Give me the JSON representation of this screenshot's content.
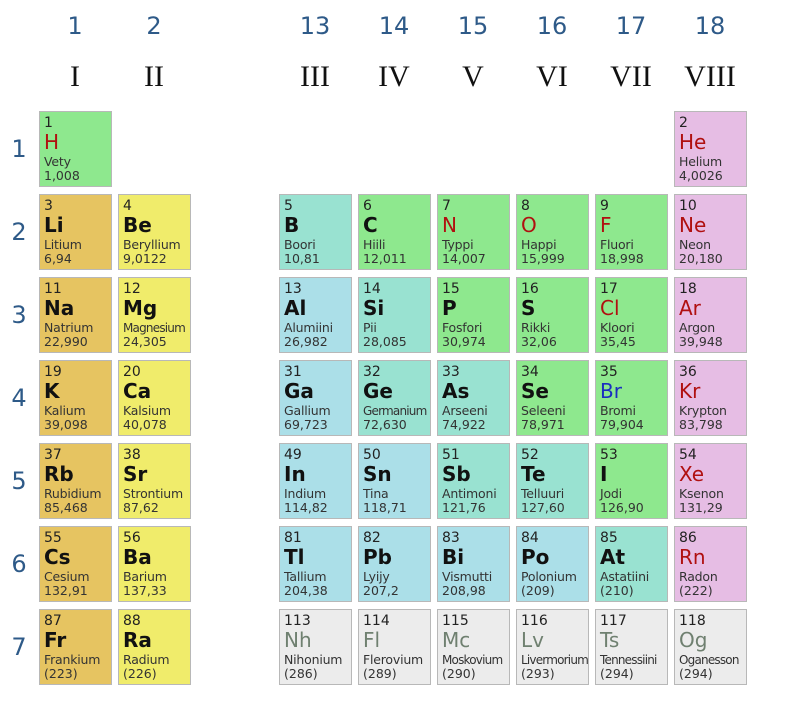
{
  "groups": [
    {
      "num": "1",
      "roman": "I",
      "col": 0
    },
    {
      "num": "2",
      "roman": "II",
      "col": 1
    },
    {
      "num": "13",
      "roman": "III",
      "col": 3
    },
    {
      "num": "14",
      "roman": "IV",
      "col": 4
    },
    {
      "num": "15",
      "roman": "V",
      "col": 5
    },
    {
      "num": "16",
      "roman": "VI",
      "col": 6
    },
    {
      "num": "17",
      "roman": "VII",
      "col": 7
    },
    {
      "num": "18",
      "roman": "VIII",
      "col": 8
    }
  ],
  "periods": [
    "1",
    "2",
    "3",
    "4",
    "5",
    "6",
    "7"
  ],
  "colors": {
    "alkali": "#e6c461",
    "alkaline": "#f0ec6b",
    "nonmetal": "#8ee88e",
    "noble": "#e6bde4",
    "metalloid": "#99e2d1",
    "post": "#abdfe8",
    "unknown": "#ececec",
    "symbol_red": "#b01010",
    "symbol_blue": "#1a2ec0",
    "symbol_gray": "#6f8070",
    "header_blue": "#2e5a88"
  },
  "elements": [
    {
      "z": "1",
      "sym": "H",
      "name": "Vety",
      "mass": "1,008",
      "period": 1,
      "col": 0,
      "cat": "nonmetal",
      "state": "red"
    },
    {
      "z": "2",
      "sym": "He",
      "name": "Helium",
      "mass": "4,0026",
      "period": 1,
      "col": 8,
      "cat": "noble",
      "state": "red"
    },
    {
      "z": "3",
      "sym": "Li",
      "name": "Litium",
      "mass": "6,94",
      "period": 2,
      "col": 0,
      "cat": "alkali",
      "state": "black"
    },
    {
      "z": "4",
      "sym": "Be",
      "name": "Beryllium",
      "mass": "9,0122",
      "period": 2,
      "col": 1,
      "cat": "alkaline",
      "state": "black"
    },
    {
      "z": "5",
      "sym": "B",
      "name": "Boori",
      "mass": "10,81",
      "period": 2,
      "col": 3,
      "cat": "metalloid",
      "state": "black"
    },
    {
      "z": "6",
      "sym": "C",
      "name": "Hiili",
      "mass": "12,011",
      "period": 2,
      "col": 4,
      "cat": "nonmetal",
      "state": "black"
    },
    {
      "z": "7",
      "sym": "N",
      "name": "Typpi",
      "mass": "14,007",
      "period": 2,
      "col": 5,
      "cat": "nonmetal",
      "state": "red"
    },
    {
      "z": "8",
      "sym": "O",
      "name": "Happi",
      "mass": "15,999",
      "period": 2,
      "col": 6,
      "cat": "nonmetal",
      "state": "red"
    },
    {
      "z": "9",
      "sym": "F",
      "name": "Fluori",
      "mass": "18,998",
      "period": 2,
      "col": 7,
      "cat": "nonmetal",
      "state": "red"
    },
    {
      "z": "10",
      "sym": "Ne",
      "name": "Neon",
      "mass": "20,180",
      "period": 2,
      "col": 8,
      "cat": "noble",
      "state": "red"
    },
    {
      "z": "11",
      "sym": "Na",
      "name": "Natrium",
      "mass": "22,990",
      "period": 3,
      "col": 0,
      "cat": "alkali",
      "state": "black"
    },
    {
      "z": "12",
      "sym": "Mg",
      "name": "Magnesium",
      "mass": "24,305",
      "period": 3,
      "col": 1,
      "cat": "alkaline",
      "state": "black",
      "tight": true
    },
    {
      "z": "13",
      "sym": "Al",
      "name": "Alumiini",
      "mass": "26,982",
      "period": 3,
      "col": 3,
      "cat": "post",
      "state": "black"
    },
    {
      "z": "14",
      "sym": "Si",
      "name": "Pii",
      "mass": "28,085",
      "period": 3,
      "col": 4,
      "cat": "metalloid",
      "state": "black"
    },
    {
      "z": "15",
      "sym": "P",
      "name": "Fosfori",
      "mass": "30,974",
      "period": 3,
      "col": 5,
      "cat": "nonmetal",
      "state": "black"
    },
    {
      "z": "16",
      "sym": "S",
      "name": "Rikki",
      "mass": "32,06",
      "period": 3,
      "col": 6,
      "cat": "nonmetal",
      "state": "black"
    },
    {
      "z": "17",
      "sym": "Cl",
      "name": "Kloori",
      "mass": "35,45",
      "period": 3,
      "col": 7,
      "cat": "nonmetal",
      "state": "red"
    },
    {
      "z": "18",
      "sym": "Ar",
      "name": "Argon",
      "mass": "39,948",
      "period": 3,
      "col": 8,
      "cat": "noble",
      "state": "red"
    },
    {
      "z": "19",
      "sym": "K",
      "name": "Kalium",
      "mass": "39,098",
      "period": 4,
      "col": 0,
      "cat": "alkali",
      "state": "black"
    },
    {
      "z": "20",
      "sym": "Ca",
      "name": "Kalsium",
      "mass": "40,078",
      "period": 4,
      "col": 1,
      "cat": "alkaline",
      "state": "black"
    },
    {
      "z": "31",
      "sym": "Ga",
      "name": "Gallium",
      "mass": "69,723",
      "period": 4,
      "col": 3,
      "cat": "post",
      "state": "black"
    },
    {
      "z": "32",
      "sym": "Ge",
      "name": "Germanium",
      "mass": "72,630",
      "period": 4,
      "col": 4,
      "cat": "metalloid",
      "state": "black",
      "tight": true
    },
    {
      "z": "33",
      "sym": "As",
      "name": "Arseeni",
      "mass": "74,922",
      "period": 4,
      "col": 5,
      "cat": "metalloid",
      "state": "black"
    },
    {
      "z": "34",
      "sym": "Se",
      "name": "Seleeni",
      "mass": "78,971",
      "period": 4,
      "col": 6,
      "cat": "nonmetal",
      "state": "black"
    },
    {
      "z": "35",
      "sym": "Br",
      "name": "Bromi",
      "mass": "79,904",
      "period": 4,
      "col": 7,
      "cat": "nonmetal",
      "state": "blue"
    },
    {
      "z": "36",
      "sym": "Kr",
      "name": "Krypton",
      "mass": "83,798",
      "period": 4,
      "col": 8,
      "cat": "noble",
      "state": "red"
    },
    {
      "z": "37",
      "sym": "Rb",
      "name": "Rubidium",
      "mass": "85,468",
      "period": 5,
      "col": 0,
      "cat": "alkali",
      "state": "black"
    },
    {
      "z": "38",
      "sym": "Sr",
      "name": "Strontium",
      "mass": "87,62",
      "period": 5,
      "col": 1,
      "cat": "alkaline",
      "state": "black"
    },
    {
      "z": "49",
      "sym": "In",
      "name": "Indium",
      "mass": "114,82",
      "period": 5,
      "col": 3,
      "cat": "post",
      "state": "black"
    },
    {
      "z": "50",
      "sym": "Sn",
      "name": "Tina",
      "mass": "118,71",
      "period": 5,
      "col": 4,
      "cat": "post",
      "state": "black"
    },
    {
      "z": "51",
      "sym": "Sb",
      "name": "Antimoni",
      "mass": "121,76",
      "period": 5,
      "col": 5,
      "cat": "metalloid",
      "state": "black"
    },
    {
      "z": "52",
      "sym": "Te",
      "name": "Telluuri",
      "mass": "127,60",
      "period": 5,
      "col": 6,
      "cat": "metalloid",
      "state": "black"
    },
    {
      "z": "53",
      "sym": "I",
      "name": "Jodi",
      "mass": "126,90",
      "period": 5,
      "col": 7,
      "cat": "nonmetal",
      "state": "black"
    },
    {
      "z": "54",
      "sym": "Xe",
      "name": "Ksenon",
      "mass": "131,29",
      "period": 5,
      "col": 8,
      "cat": "noble",
      "state": "red"
    },
    {
      "z": "55",
      "sym": "Cs",
      "name": "Cesium",
      "mass": "132,91",
      "period": 6,
      "col": 0,
      "cat": "alkali",
      "state": "black"
    },
    {
      "z": "56",
      "sym": "Ba",
      "name": "Barium",
      "mass": "137,33",
      "period": 6,
      "col": 1,
      "cat": "alkaline",
      "state": "black"
    },
    {
      "z": "81",
      "sym": "Tl",
      "name": "Tallium",
      "mass": "204,38",
      "period": 6,
      "col": 3,
      "cat": "post",
      "state": "black"
    },
    {
      "z": "82",
      "sym": "Pb",
      "name": "Lyijy",
      "mass": "207,2",
      "period": 6,
      "col": 4,
      "cat": "post",
      "state": "black"
    },
    {
      "z": "83",
      "sym": "Bi",
      "name": "Vismutti",
      "mass": "208,98",
      "period": 6,
      "col": 5,
      "cat": "post",
      "state": "black"
    },
    {
      "z": "84",
      "sym": "Po",
      "name": "Polonium",
      "mass": "(209)",
      "period": 6,
      "col": 6,
      "cat": "post",
      "state": "black"
    },
    {
      "z": "85",
      "sym": "At",
      "name": "Astatiini",
      "mass": "(210)",
      "period": 6,
      "col": 7,
      "cat": "metalloid",
      "state": "black"
    },
    {
      "z": "86",
      "sym": "Rn",
      "name": "Radon",
      "mass": "(222)",
      "period": 6,
      "col": 8,
      "cat": "noble",
      "state": "red"
    },
    {
      "z": "87",
      "sym": "Fr",
      "name": "Frankium",
      "mass": "(223)",
      "period": 7,
      "col": 0,
      "cat": "alkali",
      "state": "black"
    },
    {
      "z": "88",
      "sym": "Ra",
      "name": "Radium",
      "mass": "(226)",
      "period": 7,
      "col": 1,
      "cat": "alkaline",
      "state": "black"
    },
    {
      "z": "113",
      "sym": "Nh",
      "name": "Nihonium",
      "mass": "(286)",
      "period": 7,
      "col": 3,
      "cat": "unknown",
      "state": "gray"
    },
    {
      "z": "114",
      "sym": "Fl",
      "name": "Flerovium",
      "mass": "(289)",
      "period": 7,
      "col": 4,
      "cat": "unknown",
      "state": "gray"
    },
    {
      "z": "115",
      "sym": "Mc",
      "name": "Moskovium",
      "mass": "(290)",
      "period": 7,
      "col": 5,
      "cat": "unknown",
      "state": "gray",
      "tight": true
    },
    {
      "z": "116",
      "sym": "Lv",
      "name": "Livermorium",
      "mass": "(293)",
      "period": 7,
      "col": 6,
      "cat": "unknown",
      "state": "gray",
      "tight": true
    },
    {
      "z": "117",
      "sym": "Ts",
      "name": "Tennessiini",
      "mass": "(294)",
      "period": 7,
      "col": 7,
      "cat": "unknown",
      "state": "gray",
      "tight": true
    },
    {
      "z": "118",
      "sym": "Og",
      "name": "Oganesson",
      "mass": "(294)",
      "period": 7,
      "col": 8,
      "cat": "unknown",
      "state": "gray",
      "tight": true
    }
  ]
}
